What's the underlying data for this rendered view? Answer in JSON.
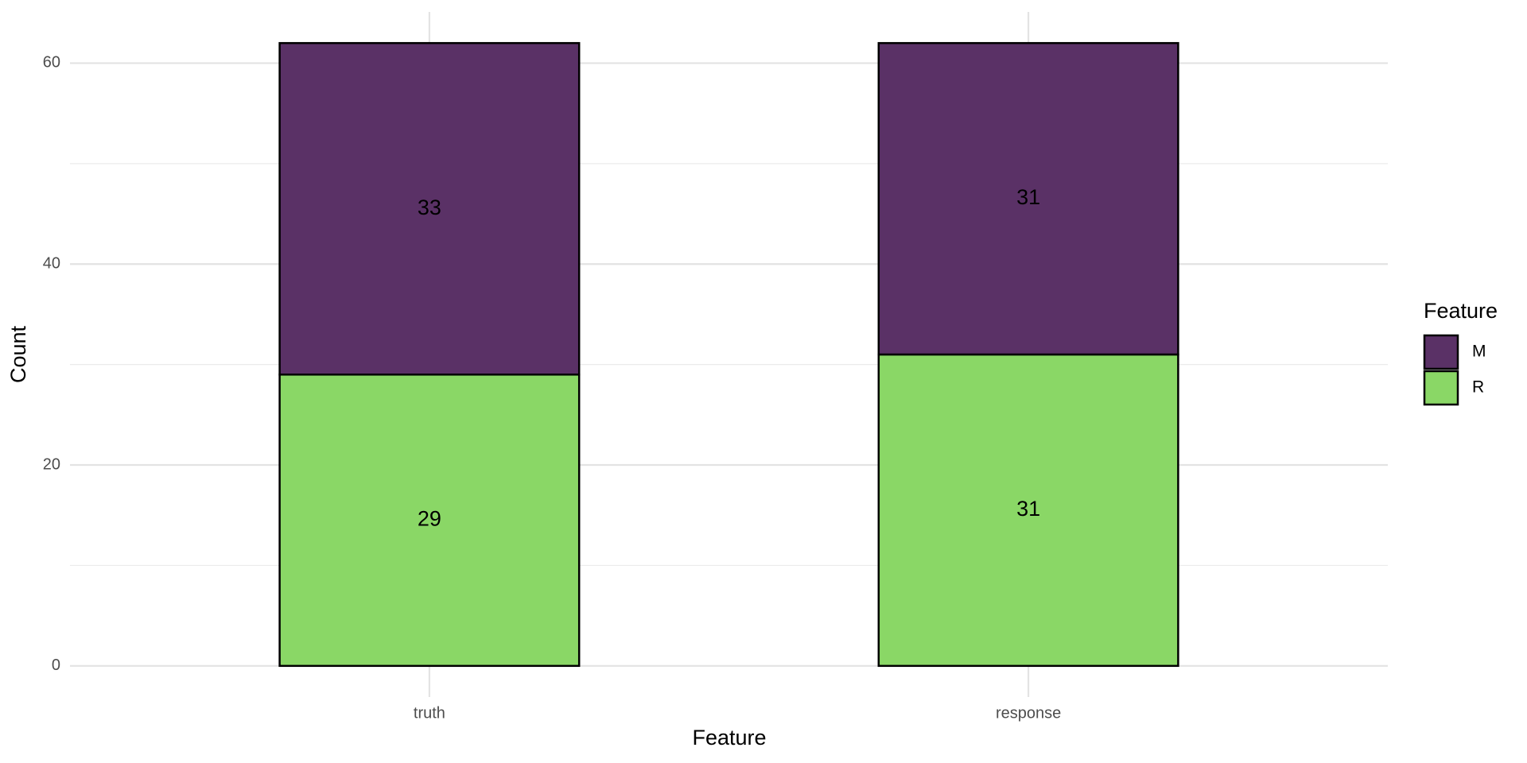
{
  "chart_data": {
    "type": "stacked_bar",
    "x_label": "Feature",
    "y_label": "Count",
    "legend_title": "Feature",
    "categories": [
      "truth",
      "response"
    ],
    "series": [
      {
        "name": "R",
        "color": "#8ad766",
        "values": [
          29,
          31
        ]
      },
      {
        "name": "M",
        "color": "#5a3166",
        "values": [
          33,
          31
        ]
      }
    ],
    "ylim": [
      -3.1,
      65.1
    ],
    "yticks": [
      0,
      20,
      40,
      60
    ],
    "minor_yticks": [
      10,
      30,
      50
    ],
    "grid": true,
    "legend_position": "right"
  }
}
